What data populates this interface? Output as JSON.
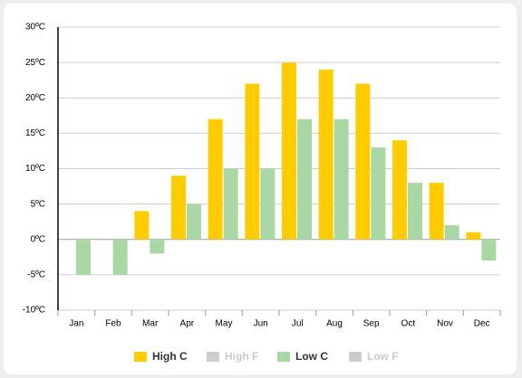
{
  "chart_data": {
    "type": "bar",
    "categories": [
      "Jan",
      "Feb",
      "Mar",
      "Apr",
      "May",
      "Jun",
      "Jul",
      "Aug",
      "Sep",
      "Oct",
      "Nov",
      "Dec"
    ],
    "series": [
      {
        "name": "High C",
        "color": "#ffcc00",
        "values": [
          0,
          0,
          4,
          9,
          17,
          22,
          25,
          24,
          22,
          14,
          8,
          1
        ]
      },
      {
        "name": "High F",
        "color": "#cccccc",
        "hidden": true,
        "values": [
          null,
          null,
          null,
          null,
          null,
          null,
          null,
          null,
          null,
          null,
          null,
          null
        ]
      },
      {
        "name": "Low C",
        "color": "#aad8a4",
        "values": [
          -5,
          -5,
          -2,
          5,
          10,
          10,
          17,
          17,
          13,
          8,
          2,
          -3
        ]
      },
      {
        "name": "Low F",
        "color": "#cccccc",
        "hidden": true,
        "values": [
          null,
          null,
          null,
          null,
          null,
          null,
          null,
          null,
          null,
          null,
          null,
          null
        ]
      }
    ],
    "ylim": [
      -10,
      30
    ],
    "yticks": [
      {
        "value": -10,
        "label": "-10ºC"
      },
      {
        "value": -5,
        "label": "-5ºC"
      },
      {
        "value": 0,
        "label": "0ºC"
      },
      {
        "value": 5,
        "label": "5ºC"
      },
      {
        "value": 10,
        "label": "10ºC"
      },
      {
        "value": 15,
        "label": "15ºC"
      },
      {
        "value": 20,
        "label": "20ºC"
      },
      {
        "value": 25,
        "label": "25ºC"
      },
      {
        "value": 30,
        "label": "30ºC"
      }
    ],
    "grid": true,
    "legend": "bottom"
  }
}
